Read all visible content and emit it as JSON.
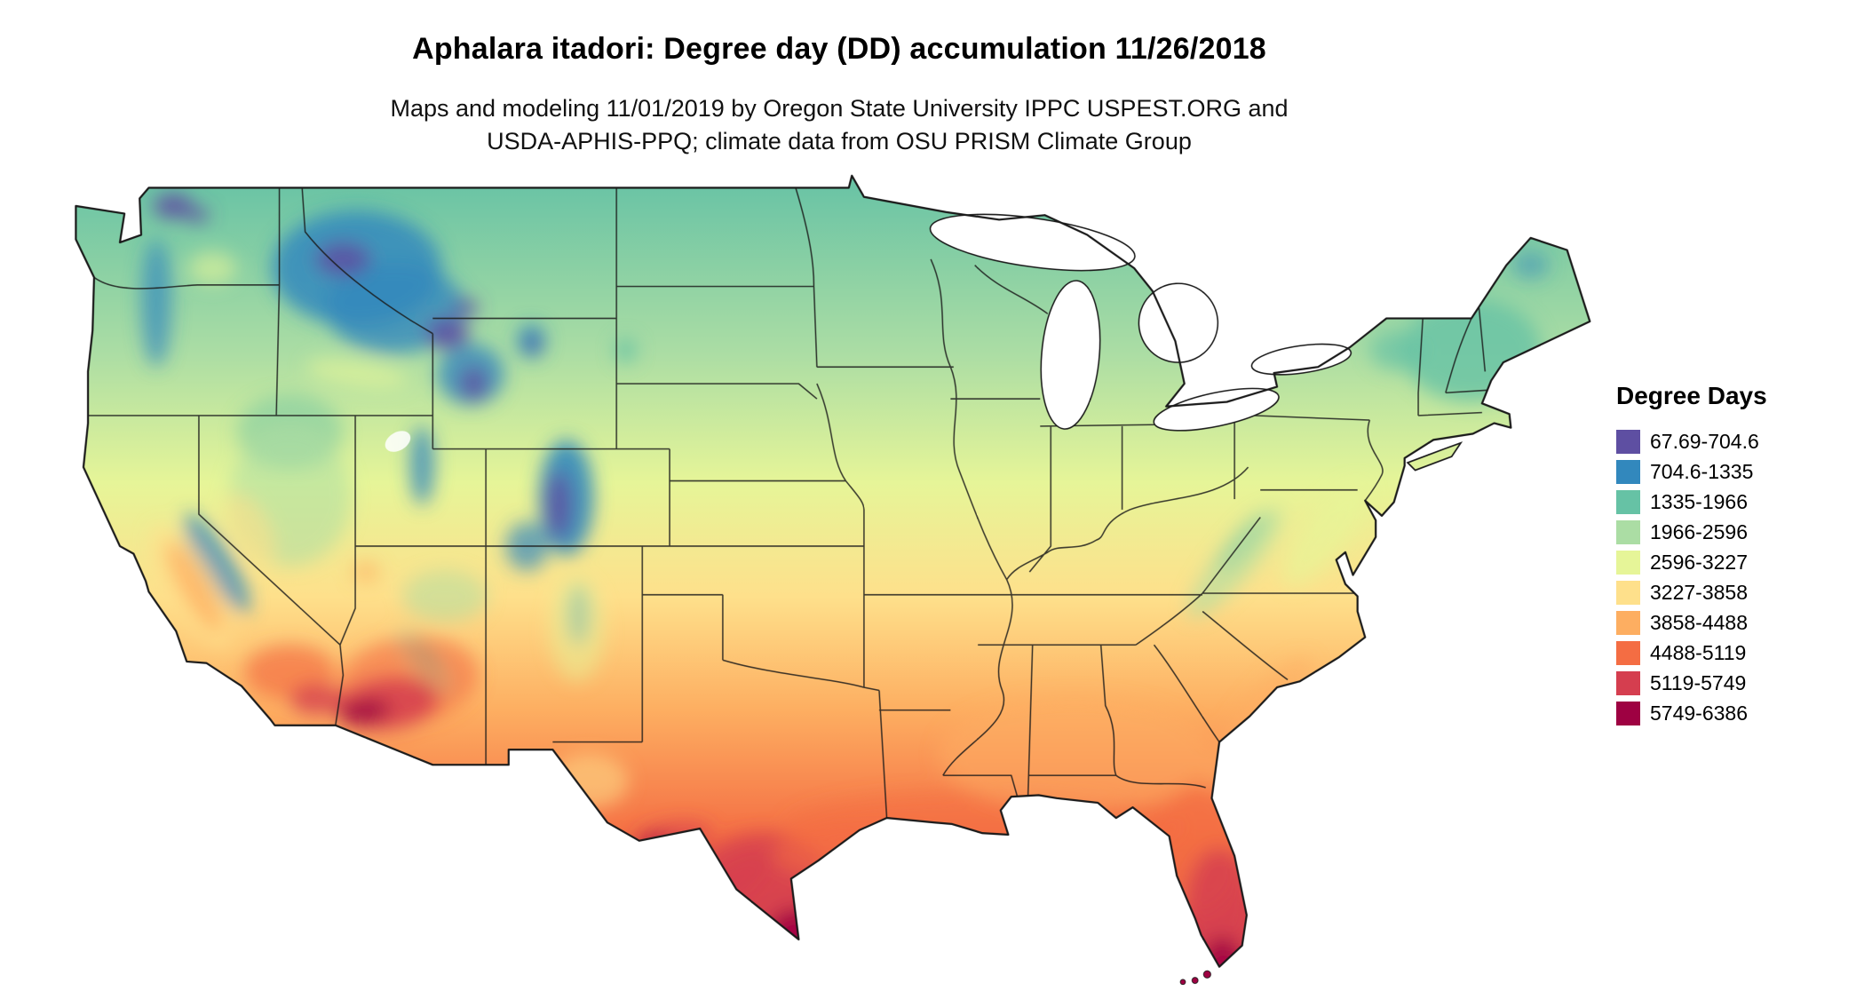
{
  "page": {
    "title": "Aphalara itadori: Degree day (DD) accumulation 11/26/2018",
    "subtitle_line1": "Maps and modeling 11/01/2019 by Oregon State University IPPC USPEST.ORG and",
    "subtitle_line2": "USDA-APHIS-PPQ; climate data from OSU PRISM Climate Group"
  },
  "legend": {
    "title": "Degree Days",
    "items": [
      {
        "label": "67.69-704.6",
        "color": "#5e4fa2"
      },
      {
        "label": "704.6-1335",
        "color": "#3288bd"
      },
      {
        "label": "1335-1966",
        "color": "#66c2a5"
      },
      {
        "label": "1966-2596",
        "color": "#abdda4"
      },
      {
        "label": "2596-3227",
        "color": "#e6f598"
      },
      {
        "label": "3227-3858",
        "color": "#fee08b"
      },
      {
        "label": "3858-4488",
        "color": "#fdae61"
      },
      {
        "label": "4488-5119",
        "color": "#f46d43"
      },
      {
        "label": "5119-5749",
        "color": "#d53e4f"
      },
      {
        "label": "5749-6386",
        "color": "#9e0142"
      }
    ]
  },
  "map": {
    "outline_color": "#1a1a1a",
    "water_color": "#ffffff"
  }
}
